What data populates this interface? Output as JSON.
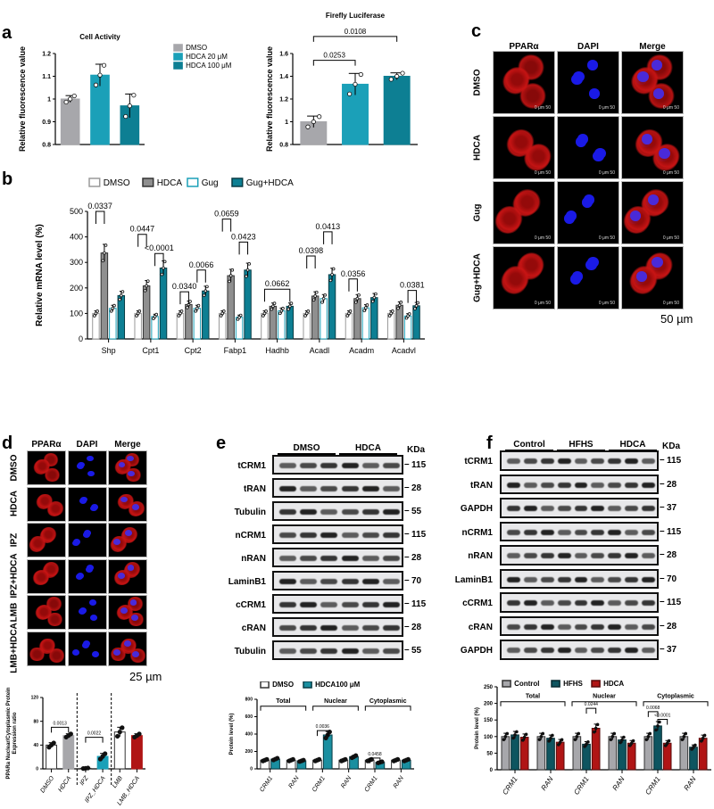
{
  "panel_labels": [
    "a",
    "b",
    "c",
    "d",
    "e",
    "f"
  ],
  "chart_data": [
    {
      "id": "a1",
      "type": "bar",
      "title": "Cell Activity",
      "ylabel": "Relative fluorescence value",
      "ylim": [
        0.8,
        1.2
      ],
      "yticks": [
        0.8,
        0.9,
        1.0,
        1.1,
        1.2
      ],
      "tick_decimals": 1,
      "categories": [
        "DMSO",
        "HDCA 20 μM",
        "HDCA 100 μM"
      ],
      "show_category_labels": false,
      "series": [
        {
          "values": [
            1.0,
            1.105,
            0.97
          ],
          "errors": [
            0.015,
            0.048,
            0.052
          ],
          "colors": [
            "#a7a7ab",
            "#1ba0b8",
            "#0d7f93"
          ]
        }
      ],
      "legend": {
        "position": "right",
        "entries": [
          {
            "name": "DMSO",
            "color": "#a7a7ab"
          },
          {
            "name": "HDCA 20 μM",
            "color": "#1ba0b8"
          },
          {
            "name": "HDCA 100 μM",
            "color": "#0d7f93"
          }
        ]
      },
      "annotations": []
    },
    {
      "id": "a2",
      "type": "bar",
      "title": "Firefly Luciferase",
      "ylabel": "Relative fluorescence value",
      "ylim": [
        0.8,
        1.6
      ],
      "yticks": [
        0.8,
        1.0,
        1.2,
        1.4,
        1.6
      ],
      "tick_decimals": 1,
      "categories": [
        "DMSO",
        "HDCA 20 μM",
        "HDCA 100 μM"
      ],
      "show_category_labels": false,
      "series": [
        {
          "values": [
            1.0,
            1.33,
            1.4
          ],
          "errors": [
            0.05,
            0.095,
            0.03
          ],
          "colors": [
            "#a7a7ab",
            "#1ba0b8",
            "#0d7f93"
          ]
        }
      ],
      "annotations": [
        {
          "text": "0.0253",
          "from": 0,
          "to": 1,
          "y": 1.54
        },
        {
          "text": "0.0108",
          "from": 0,
          "to": 2,
          "y": 1.75
        }
      ]
    },
    {
      "id": "b",
      "type": "bar",
      "title": "",
      "ylabel": "Relative mRNA level (%)",
      "ylim": [
        0,
        500
      ],
      "yticks": [
        0,
        100,
        200,
        300,
        400,
        500
      ],
      "tick_decimals": 0,
      "categories": [
        "Shp",
        "Cpt1",
        "Cpt2",
        "Fabp1",
        "Hadhb",
        "Acadl",
        "Acadm",
        "Acadvl"
      ],
      "show_category_labels": true,
      "series": [
        {
          "name": "DMSO",
          "fill": "#ffffff",
          "stroke": "#9a9a9a",
          "values": [
            100,
            100,
            100,
            100,
            100,
            100,
            100,
            100
          ]
        },
        {
          "name": "HDCA",
          "fill": "#8f8f8f",
          "stroke": "#333333",
          "values": [
            337,
            208,
            135,
            248,
            128,
            168,
            158,
            132
          ]
        },
        {
          "name": "Gug",
          "fill": "#ffffff",
          "stroke": "#1ba0b8",
          "values": [
            120,
            88,
            120,
            85,
            110,
            158,
            122,
            90
          ]
        },
        {
          "name": "Gug+HDCA",
          "fill": "#0d7f93",
          "stroke": "#083c45",
          "values": [
            170,
            278,
            188,
            270,
            128,
            252,
            162,
            130
          ]
        }
      ],
      "legend": {
        "position": "top",
        "entries": [
          "DMSO",
          "HDCA",
          "Gug",
          "Gug+HDCA"
        ]
      },
      "annotations": [
        {
          "text": "0.0337",
          "cat": 0,
          "from": 0,
          "to": 1,
          "y": 500
        },
        {
          "text": "0.0447",
          "cat": 1,
          "from": 0,
          "to": 1,
          "y": 410
        },
        {
          "text": "<0.0001",
          "cat": 1,
          "from": 2,
          "to": 3,
          "y": 335
        },
        {
          "text": "0.0340",
          "cat": 2,
          "from": 0,
          "to": 1,
          "y": 185
        },
        {
          "text": "0.0066",
          "cat": 2,
          "from": 2,
          "to": 3,
          "y": 270
        },
        {
          "text": "0.0659",
          "cat": 3,
          "from": 0,
          "to": 1,
          "y": 470
        },
        {
          "text": "0.0423",
          "cat": 3,
          "from": 2,
          "to": 3,
          "y": 380
        },
        {
          "text": "0.0662",
          "cat": 4,
          "from": 0,
          "to": 3,
          "y": 195
        },
        {
          "text": "0.0398",
          "cat": 5,
          "from": 0,
          "to": 1,
          "y": 325
        },
        {
          "text": "0.0413",
          "cat": 5,
          "from": 2,
          "to": 3,
          "y": 420
        },
        {
          "text": "0.0356",
          "cat": 6,
          "from": 0,
          "to": 1,
          "y": 235
        },
        {
          "text": "0.0381",
          "cat": 7,
          "from": 2,
          "to": 3,
          "y": 190
        }
      ]
    },
    {
      "id": "d",
      "type": "bar",
      "title": "",
      "ylabel": "PPARa Nuclear/Cytoplasmic Protein Expression ratio",
      "ylim": [
        0,
        120
      ],
      "yticks": [
        0,
        40,
        80,
        120
      ],
      "tick_decimals": 0,
      "categories": [
        "DMSO",
        "HDCA",
        "IPZ",
        "IPZ_HDCA",
        "LMB",
        "LMB_HDCA"
      ],
      "show_category_labels": true,
      "rotate_labels": true,
      "series": [
        {
          "values": [
            40,
            56,
            1,
            21,
            62,
            56
          ],
          "errors": [
            4,
            3,
            0.5,
            5,
            8,
            3
          ],
          "colors": [
            "#ffffff",
            "#a7a7ab",
            "#ffffff",
            "#1ba0b8",
            "#ffffff",
            "#b01515"
          ]
        }
      ],
      "dividers": [
        2,
        4
      ],
      "annotations": [
        {
          "text": "0.0013",
          "from": 0,
          "to": 1,
          "y": 70
        },
        {
          "text": "0.0022",
          "from": 2,
          "to": 3,
          "y": 53
        }
      ]
    },
    {
      "id": "e",
      "type": "bar",
      "title": "",
      "ylabel": "Protein level (%)",
      "ylim": [
        0,
        800
      ],
      "yticks": [
        0,
        200,
        400,
        600,
        800
      ],
      "tick_decimals": 0,
      "categories": [
        "CRM1",
        "RAN",
        "CRM1",
        "RAN",
        "CRM1",
        "RAN"
      ],
      "show_category_labels": true,
      "rotate_labels": true,
      "series": [
        {
          "name": "DMSO",
          "fill": "#ffffff",
          "stroke": "#333333",
          "values": [
            100,
            100,
            100,
            100,
            100,
            100
          ]
        },
        {
          "name": "HDCA100 μM",
          "fill": "#1a8fa0",
          "stroke": "#083c45",
          "values": [
            112,
            92,
            390,
            140,
            75,
            100
          ]
        }
      ],
      "legend": {
        "position": "top-left",
        "entries": [
          "DMSO",
          "HDCA100 μM"
        ]
      },
      "groups": [
        {
          "label": "Total",
          "span": [
            0,
            1
          ],
          "y": 720
        },
        {
          "label": "Nuclear",
          "span": [
            2,
            3
          ],
          "y": 720
        },
        {
          "label": "Cytoplasmic",
          "span": [
            4,
            5
          ],
          "y": 720
        }
      ],
      "annotations": [
        {
          "text": "0.0036",
          "cat": 2,
          "from": 0,
          "to": 1,
          "y": 440
        },
        {
          "text": "0.0458",
          "cat": 4,
          "from": 0,
          "to": 1,
          "y": 125
        }
      ]
    },
    {
      "id": "f",
      "type": "bar",
      "title": "",
      "ylabel": "Protein level (%)",
      "ylim": [
        0,
        250
      ],
      "yticks": [
        0,
        50,
        100,
        150,
        200,
        250
      ],
      "tick_decimals": 0,
      "categories": [
        "CRM1",
        "RAN",
        "CRM1",
        "RAN",
        "CRM1",
        "RAN"
      ],
      "show_category_labels": true,
      "rotate_labels": true,
      "series": [
        {
          "name": "Control",
          "fill": "#a7a7ab",
          "stroke": "#333333",
          "values": [
            100,
            100,
            100,
            100,
            100,
            100
          ]
        },
        {
          "name": "HFHS",
          "fill": "#0e5560",
          "stroke": "#062a30",
          "values": [
            105,
            95,
            77,
            90,
            132,
            68
          ]
        },
        {
          "name": "HDCA",
          "fill": "#b01515",
          "stroke": "#5a0a0a",
          "values": [
            98,
            83,
            125,
            80,
            80,
            95
          ]
        }
      ],
      "legend": {
        "position": "top-left",
        "entries": [
          "Control",
          "HFHS",
          "HDCA"
        ]
      },
      "groups": [
        {
          "label": "Total",
          "span": [
            0,
            1
          ],
          "y": 205
        },
        {
          "label": "Nuclear",
          "span": [
            2,
            3
          ],
          "y": 205
        },
        {
          "label": "Cytoplasmic",
          "span": [
            4,
            5
          ],
          "y": 205
        }
      ],
      "annotations": [
        {
          "text": "0.0244",
          "cat": 2,
          "from": 1,
          "to": 2,
          "y": 185
        },
        {
          "text": "0.0068",
          "cat": 4,
          "from": 0,
          "to": 1,
          "y": 175
        },
        {
          "text": "<0.0001",
          "cat": 4,
          "from": 1,
          "to": 2,
          "y": 152
        }
      ]
    }
  ],
  "panel_c": {
    "columns": [
      "PPARα",
      "DAPI",
      "Merge"
    ],
    "rows": [
      "DMSO",
      "HDCA",
      "Gug",
      "Gug+HDCA"
    ],
    "scalebar_text": "0     μm     50",
    "scale": "50 µm"
  },
  "panel_d": {
    "columns": [
      "PPARα",
      "DAPI",
      "Merge"
    ],
    "rows": [
      "DMSO",
      "HDCA",
      "IPZ",
      "IPZ+HDCA",
      "LMB",
      "LMB+HDCA"
    ],
    "scale": "25 µm"
  },
  "panel_e": {
    "groups": [
      "DMSO",
      "HDCA"
    ],
    "kda_label": "KDa",
    "lanes": 6,
    "rows": [
      {
        "label": "tCRM1",
        "kda": "115"
      },
      {
        "label": "tRAN",
        "kda": "28"
      },
      {
        "label": "Tubulin",
        "kda": "55"
      },
      {
        "label": "nCRM1",
        "kda": "115"
      },
      {
        "label": "nRAN",
        "kda": "28"
      },
      {
        "label": "LaminB1",
        "kda": "70"
      },
      {
        "label": "cCRM1",
        "kda": "115"
      },
      {
        "label": "cRAN",
        "kda": "28"
      },
      {
        "label": "Tubulin",
        "kda": "55"
      }
    ]
  },
  "panel_f": {
    "groups": [
      "Control",
      "HFHS",
      "HDCA"
    ],
    "kda_label": "KDa",
    "lanes": 9,
    "rows": [
      {
        "label": "tCRM1",
        "kda": "115"
      },
      {
        "label": "tRAN",
        "kda": "28"
      },
      {
        "label": "GAPDH",
        "kda": "37"
      },
      {
        "label": "nCRM1",
        "kda": "115"
      },
      {
        "label": "nRAN",
        "kda": "28"
      },
      {
        "label": "LaminB1",
        "kda": "70"
      },
      {
        "label": "cCRM1",
        "kda": "115"
      },
      {
        "label": "cRAN",
        "kda": "28"
      },
      {
        "label": "GAPDH",
        "kda": "37"
      }
    ]
  }
}
